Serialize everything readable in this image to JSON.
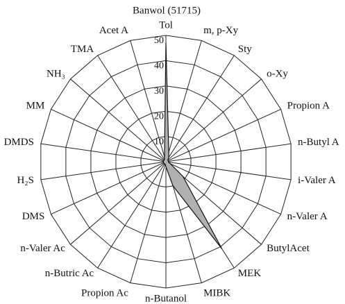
{
  "chart_data": {
    "type": "radar",
    "title": "Banwol (51715)",
    "categories": [
      "Tol",
      "m, p-Xy",
      "Sty",
      "o-Xy",
      "Propion A",
      "n-Butyl A",
      "i-Valer A",
      "n-Valer A",
      "ButylAcet",
      "MEK",
      "MIBK",
      "n-Butanol",
      "Propion Ac",
      "n-Butric Ac",
      "n-Valer Ac",
      "DMS",
      "H₂S",
      "DMDS",
      "MM",
      "NH₃",
      "TMA",
      "Acet A"
    ],
    "series": [
      {
        "name": "Banwol",
        "color": "#b0b0b0",
        "values": [
          47,
          4,
          2,
          1,
          1,
          1,
          1,
          2,
          9,
          41,
          10,
          2,
          1,
          1,
          1,
          1,
          1,
          1,
          1,
          1,
          1,
          2
        ]
      }
    ],
    "ylim": [
      0,
      50
    ],
    "yticks": [
      10,
      20,
      30,
      40,
      50
    ],
    "grid": true
  }
}
